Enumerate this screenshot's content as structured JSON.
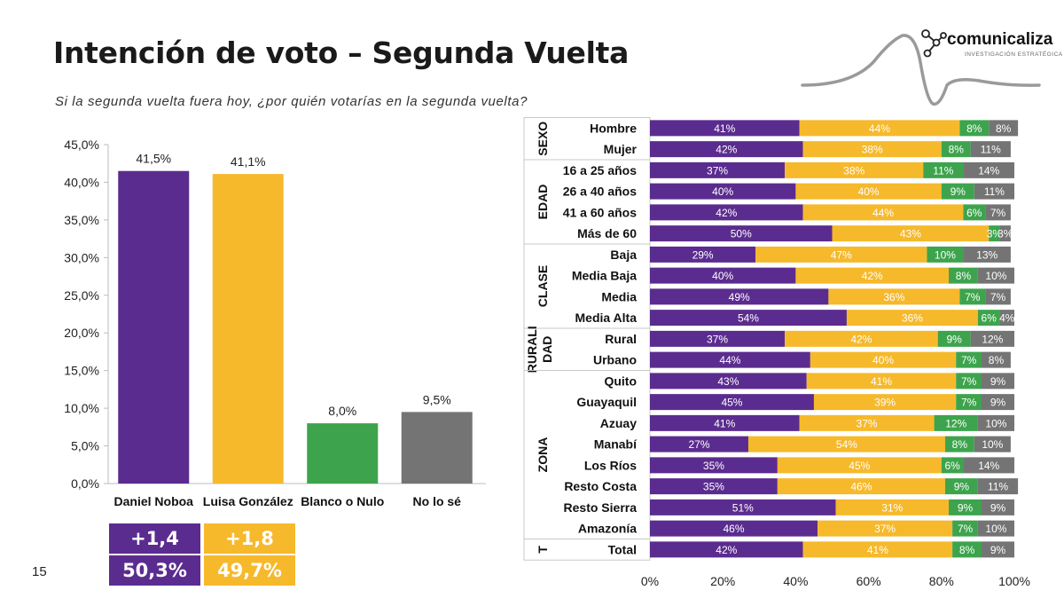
{
  "header": {
    "title": "Intención de voto – Segunda Vuelta",
    "subtitle": "Si la segunda vuelta fuera hoy, ¿por quién votarías en la segunda vuelta?",
    "page_number": "15"
  },
  "logo": {
    "name": "comunicaliza",
    "tagline": "INVESTIGACIÓN ESTRATÉGICA"
  },
  "colors": {
    "noboa": "#5b2c8f",
    "gonzalez": "#f6b92b",
    "nulo": "#3da44d",
    "nose": "#747474",
    "summary_purple": "#5b2c8f",
    "summary_yellow": "#f6b92b"
  },
  "summary": {
    "noboa_change": "+1,4",
    "gonzalez_change": "+1,8",
    "noboa_share": "50,3%",
    "gonzalez_share": "49,7%"
  },
  "chart_data": [
    {
      "type": "bar",
      "categories": [
        "Daniel Noboa",
        "Luisa González",
        "Blanco o Nulo",
        "No lo sé"
      ],
      "values": [
        41.5,
        41.1,
        8.0,
        9.5
      ],
      "data_labels": [
        "41,5%",
        "41,1%",
        "8,0%",
        "9,5%"
      ],
      "y_ticks": [
        "0,0%",
        "5,0%",
        "10,0%",
        "15,0%",
        "20,0%",
        "25,0%",
        "30,0%",
        "35,0%",
        "40,0%",
        "45,0%"
      ],
      "ylim": [
        0,
        45
      ],
      "grid": false
    },
    {
      "type": "bar",
      "orientation": "horizontal",
      "stacked": true,
      "xlim": [
        0,
        100
      ],
      "x_ticks": [
        "0%",
        "20%",
        "40%",
        "60%",
        "80%",
        "100%"
      ],
      "groups": [
        {
          "label": "SEXO",
          "rows": [
            "Hombre",
            "Mujer"
          ]
        },
        {
          "label": "EDAD",
          "rows": [
            "16 a 25 años",
            "26 a 40 años",
            "41 a 60 años",
            "Más de 60"
          ]
        },
        {
          "label": "CLASE",
          "rows": [
            "Baja",
            "Media Baja",
            "Media",
            "Media Alta"
          ]
        },
        {
          "label": "RURALI DAD",
          "rows": [
            "Rural",
            "Urbano"
          ]
        },
        {
          "label": "ZONA",
          "rows": [
            "Quito",
            "Guayaquil",
            "Azuay",
            "Manabí",
            "Los Ríos",
            "Resto Costa",
            "Resto Sierra",
            "Amazonía"
          ]
        },
        {
          "label": "T",
          "rows": [
            "Total"
          ]
        }
      ],
      "categories": [
        "Hombre",
        "Mujer",
        "16 a 25 años",
        "26 a 40 años",
        "41 a 60 años",
        "Más de 60",
        "Baja",
        "Media Baja",
        "Media",
        "Media Alta",
        "Rural",
        "Urbano",
        "Quito",
        "Guayaquil",
        "Azuay",
        "Manabí",
        "Los Ríos",
        "Resto Costa",
        "Resto Sierra",
        "Amazonía",
        "Total"
      ],
      "series": [
        {
          "values": [
            41,
            42,
            37,
            40,
            42,
            50,
            29,
            40,
            49,
            54,
            37,
            44,
            43,
            45,
            41,
            27,
            35,
            35,
            51,
            46,
            42
          ]
        },
        {
          "values": [
            44,
            38,
            38,
            40,
            44,
            43,
            47,
            42,
            36,
            36,
            42,
            40,
            41,
            39,
            37,
            54,
            45,
            46,
            31,
            37,
            41
          ]
        },
        {
          "values": [
            8,
            8,
            11,
            9,
            6,
            3,
            10,
            8,
            7,
            6,
            9,
            7,
            7,
            7,
            12,
            8,
            6,
            9,
            9,
            7,
            8
          ]
        },
        {
          "values": [
            8,
            11,
            14,
            11,
            7,
            3,
            13,
            10,
            7,
            4,
            12,
            8,
            9,
            9,
            10,
            10,
            14,
            11,
            9,
            10,
            9
          ]
        }
      ]
    }
  ]
}
